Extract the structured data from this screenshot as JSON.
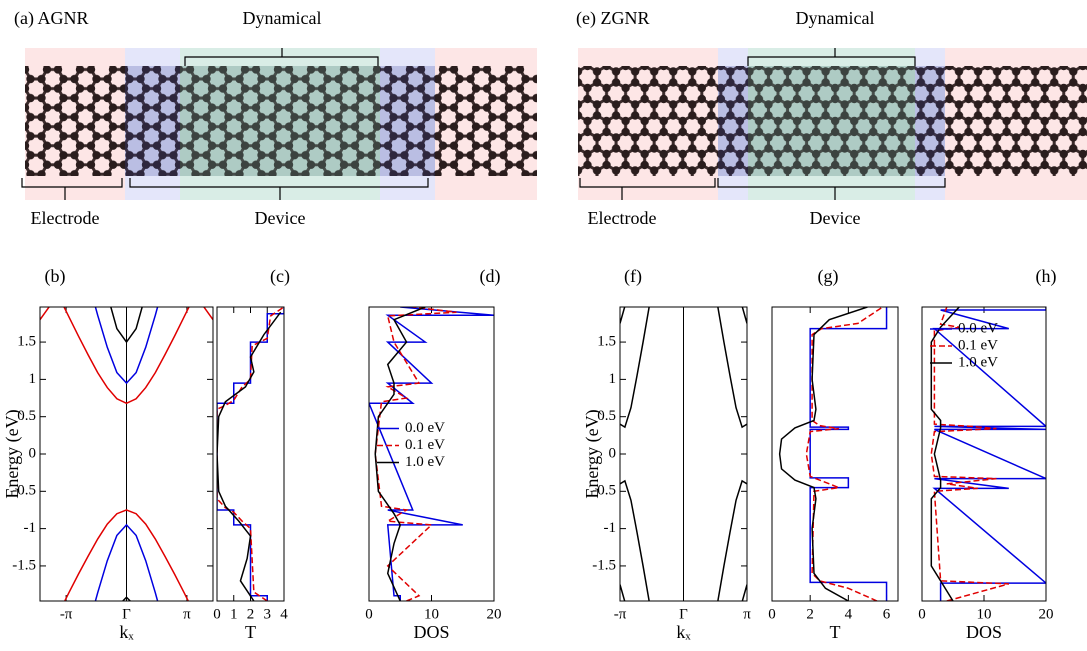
{
  "diagrams": [
    {
      "label": "(a) AGNR",
      "top_bracket": "Dynamical",
      "left_bracket": "Electrode",
      "bottom_bracket": "Device"
    },
    {
      "label": "(e) ZGNR",
      "top_bracket": "Dynamical",
      "left_bracket": "Electrode",
      "bottom_bracket": "Device"
    }
  ],
  "chart_data": [
    {
      "type": "line",
      "title": "(b)",
      "x_label": "kₓ",
      "y_label": "Energy (eV)",
      "xlim": [
        -4.5,
        4.5
      ],
      "ylim": [
        -1.97,
        1.97
      ],
      "xticks": [
        {
          "value": -3.1416,
          "label": "-π"
        },
        {
          "value": 0,
          "label": "Γ"
        },
        {
          "value": 3.1416,
          "label": "π"
        }
      ],
      "yticks": [
        -1.5,
        -1,
        -0.5,
        0,
        0.5,
        1,
        1.5
      ],
      "x": [
        -4.5,
        -4,
        -3.5,
        -3,
        -2.5,
        -2,
        -1.5,
        -1,
        -0.5,
        0,
        0.5,
        1,
        1.5,
        2,
        2.5,
        3,
        3.5,
        4,
        4.5
      ],
      "series": [
        {
          "color": "#e00000",
          "values": [
            null,
            null,
            2.1,
            1.84,
            1.58,
            1.33,
            1.09,
            0.89,
            0.74,
            0.68,
            0.74,
            0.89,
            1.09,
            1.33,
            1.58,
            1.84,
            2.1,
            null,
            null
          ]
        },
        {
          "color": "#e00000",
          "values": [
            1.8,
            1.98,
            null,
            null,
            null,
            null,
            null,
            null,
            null,
            null,
            null,
            null,
            null,
            null,
            null,
            null,
            null,
            1.98,
            1.8
          ]
        },
        {
          "color": "#e00000",
          "values": [
            null,
            null,
            -2.12,
            -1.86,
            -1.61,
            -1.37,
            -1.14,
            -0.94,
            -0.8,
            -0.75,
            -0.8,
            -0.94,
            -1.14,
            -1.37,
            -1.61,
            -1.86,
            -2.12,
            null,
            null
          ]
        },
        {
          "color": "#0000e0",
          "values": [
            null,
            null,
            null,
            null,
            null,
            2.33,
            1.86,
            1.43,
            1.09,
            0.95,
            1.09,
            1.43,
            1.86,
            2.33,
            null,
            null,
            null,
            null,
            null
          ]
        },
        {
          "color": "#0000e0",
          "values": [
            null,
            null,
            null,
            null,
            null,
            -2.33,
            -1.86,
            -1.43,
            -1.09,
            -0.95,
            -1.09,
            -1.43,
            -1.86,
            -2.33,
            null,
            null,
            null,
            null,
            null
          ]
        },
        {
          "color": "#000000",
          "values": [
            null,
            null,
            null,
            null,
            null,
            null,
            null,
            2.14,
            1.68,
            1.5,
            1.68,
            2.14,
            null,
            null,
            null,
            null,
            null,
            null,
            null
          ]
        },
        {
          "color": "#000000",
          "values": [
            null,
            null,
            null,
            null,
            null,
            null,
            null,
            null,
            -2.05,
            -1.92,
            -2.05,
            null,
            null,
            null,
            null,
            null,
            null,
            null,
            null
          ]
        }
      ]
    },
    {
      "type": "line",
      "orientation": "horizontal",
      "title": "(c)",
      "x_label": "T",
      "xlim": [
        0,
        4
      ],
      "ylim": [
        -1.97,
        1.97
      ],
      "xticks": [
        0,
        1,
        2,
        3,
        4
      ],
      "series": [
        {
          "color": "#0000e0",
          "style": "solid",
          "y": [
            -1.97,
            -1.9,
            -1.9,
            -0.95,
            -0.95,
            -0.75,
            -0.75,
            0.68,
            0.68,
            0.95,
            0.95,
            1.5,
            1.5,
            1.88,
            1.88,
            1.97
          ],
          "values": [
            3,
            3,
            2,
            2,
            1,
            1,
            0,
            0,
            1,
            1,
            2,
            2,
            3,
            3,
            4,
            4
          ]
        },
        {
          "color": "#e00000",
          "style": "dashed",
          "y": [
            -1.97,
            -1.85,
            -1.0,
            -0.9,
            -0.78,
            -0.72,
            -0.6,
            0.6,
            0.65,
            0.72,
            0.9,
            1.0,
            1.45,
            1.55,
            1.85,
            1.97
          ],
          "values": [
            3,
            2.2,
            2,
            1.5,
            1,
            0.5,
            0,
            0,
            0.5,
            1,
            1.5,
            2,
            2.1,
            3,
            3.2,
            4
          ]
        },
        {
          "color": "#000000",
          "style": "solid",
          "y": [
            -1.97,
            -1.7,
            -1.4,
            -1.1,
            -0.9,
            -0.7,
            -0.5,
            0,
            0.5,
            0.7,
            0.9,
            1.1,
            1.3,
            1.6,
            1.9
          ],
          "values": [
            2.2,
            1.4,
            1.8,
            2.0,
            1.3,
            0.5,
            0.1,
            0,
            0.1,
            0.5,
            1.7,
            2.2,
            2.0,
            2.8,
            3.8
          ]
        }
      ]
    },
    {
      "type": "line",
      "orientation": "horizontal",
      "title": "(d)",
      "x_label": "DOS",
      "xlim": [
        0,
        20
      ],
      "ylim": [
        -1.97,
        1.97
      ],
      "xticks": [
        0,
        10,
        20
      ],
      "legend": "center left",
      "series": [
        {
          "name": "0.0 eV",
          "color": "#0000e0",
          "style": "solid",
          "y": [
            -1.97,
            -1.9,
            -1.9,
            -0.95,
            -0.95,
            -0.75,
            -0.75,
            0.68,
            0.68,
            0.95,
            0.95,
            1.5,
            1.5,
            1.86,
            1.86,
            1.97
          ],
          "values": [
            5,
            5,
            4,
            3,
            15,
            3,
            7,
            0,
            7,
            3,
            10,
            3,
            9,
            3,
            20,
            5
          ]
        },
        {
          "name": "0.1 eV",
          "color": "#e00000",
          "style": "dashed",
          "y": [
            -1.97,
            -1.9,
            -1.5,
            -0.95,
            -0.9,
            -0.75,
            -0.7,
            0,
            0.7,
            0.75,
            0.9,
            0.95,
            1.5,
            1.85,
            1.9,
            1.97
          ],
          "values": [
            6,
            8,
            3,
            10,
            3,
            6,
            2,
            1,
            2,
            6,
            3,
            8,
            4,
            3,
            14,
            7
          ]
        },
        {
          "name": "1.0 eV",
          "color": "#000000",
          "style": "solid",
          "y": [
            -1.97,
            -1.6,
            -1.2,
            -0.95,
            -0.8,
            -0.5,
            0,
            0.5,
            0.8,
            0.95,
            1.2,
            1.5,
            1.8,
            1.97
          ],
          "values": [
            5,
            3,
            4,
            5,
            4,
            1.5,
            1,
            1.5,
            4,
            4,
            3,
            6,
            4,
            9
          ]
        }
      ]
    },
    {
      "type": "line",
      "title": "(f)",
      "x_label": "kₓ",
      "y_label": "Energy (eV)",
      "xlim": [
        -3.1416,
        3.1416
      ],
      "ylim": [
        -1.97,
        1.97
      ],
      "xticks": [
        {
          "value": -3.1416,
          "label": "-π"
        },
        {
          "value": 0,
          "label": "Γ"
        },
        {
          "value": 3.1416,
          "label": "π"
        }
      ],
      "yticks": [
        -1.5,
        -1,
        -0.5,
        0,
        0.5,
        1,
        1.5
      ],
      "x": [
        -3.1416,
        -2.9,
        -2.6,
        -2.3,
        -2,
        -1.7,
        0,
        1.7,
        2,
        2.3,
        2.6,
        2.9,
        3.1416
      ],
      "series": [
        {
          "color": "#000000",
          "values": [
            0.4,
            0.36,
            0.62,
            1.05,
            1.5,
            1.97,
            null,
            1.97,
            1.5,
            1.05,
            0.62,
            0.36,
            0.4
          ]
        },
        {
          "color": "#000000",
          "values": [
            1.75,
            1.98,
            null,
            null,
            null,
            null,
            null,
            null,
            null,
            null,
            null,
            1.98,
            1.75
          ]
        },
        {
          "color": "#000000",
          "values": [
            -0.4,
            -0.36,
            -0.62,
            -1.05,
            -1.5,
            -1.97,
            null,
            -1.97,
            -1.5,
            -1.05,
            -0.62,
            -0.36,
            -0.4
          ]
        },
        {
          "color": "#000000",
          "values": [
            -1.75,
            -1.98,
            null,
            null,
            null,
            null,
            null,
            null,
            null,
            null,
            null,
            -1.98,
            -1.75
          ]
        }
      ]
    },
    {
      "type": "line",
      "orientation": "horizontal",
      "title": "(g)",
      "x_label": "T",
      "xlim": [
        0,
        6.6
      ],
      "ylim": [
        -1.97,
        1.97
      ],
      "xticks": [
        0,
        2,
        4,
        6
      ],
      "series": [
        {
          "color": "#0000e0",
          "style": "solid",
          "y": [
            -1.97,
            -1.72,
            -1.72,
            -0.45,
            -0.45,
            -0.32,
            -0.32,
            0.33,
            0.33,
            0.36,
            0.36,
            1.68,
            1.68,
            1.97
          ],
          "values": [
            6,
            6,
            2,
            2,
            4,
            4,
            2,
            2,
            4,
            4,
            2,
            2,
            6,
            6
          ]
        },
        {
          "color": "#e00000",
          "style": "dashed",
          "y": [
            -1.97,
            -1.8,
            -1.7,
            -1.6,
            -0.5,
            -0.45,
            -0.4,
            -0.3,
            0,
            0.3,
            0.34,
            0.38,
            0.45,
            1.6,
            1.68,
            1.75,
            1.97
          ],
          "values": [
            5.5,
            4,
            2.5,
            2.1,
            2.2,
            3.5,
            3,
            2,
            1.8,
            2,
            3.5,
            2.5,
            2.1,
            2.1,
            2.6,
            4.5,
            5.8
          ]
        },
        {
          "color": "#000000",
          "style": "solid",
          "y": [
            -1.97,
            -1.8,
            -1.6,
            -1.0,
            -0.6,
            -0.45,
            -0.35,
            -0.2,
            0,
            0.2,
            0.35,
            0.45,
            0.6,
            1.0,
            1.6,
            1.8,
            1.97
          ],
          "values": [
            4,
            2.8,
            2.2,
            2.1,
            2.3,
            2.2,
            1.2,
            0.5,
            0.4,
            0.5,
            1.2,
            2.2,
            2.3,
            2.1,
            2.2,
            3,
            5
          ]
        }
      ]
    },
    {
      "type": "line",
      "orientation": "horizontal",
      "title": "(h)",
      "x_label": "DOS",
      "xlim": [
        0,
        20
      ],
      "ylim": [
        -1.97,
        1.97
      ],
      "xticks": [
        0,
        10,
        20
      ],
      "legend": "upper left",
      "series": [
        {
          "name": "0.0 eV",
          "color": "#0000e0",
          "style": "solid",
          "y": [
            -1.97,
            -1.73,
            -1.73,
            -0.46,
            -0.46,
            -0.33,
            -0.33,
            0.33,
            0.33,
            0.37,
            0.37,
            1.68,
            1.68,
            1.93,
            1.93,
            1.97
          ],
          "values": [
            3,
            3,
            20,
            2,
            14,
            2,
            20,
            2,
            20,
            2,
            20,
            2,
            14,
            3,
            20,
            20
          ]
        },
        {
          "name": "0.1 eV",
          "color": "#e00000",
          "style": "dashed",
          "y": [
            -1.97,
            -1.74,
            -1.7,
            -0.5,
            -0.46,
            -0.4,
            -0.33,
            -0.3,
            0,
            0.3,
            0.34,
            0.37,
            0.4,
            1.65,
            1.7,
            1.74,
            1.97
          ],
          "values": [
            4,
            14,
            3,
            2,
            9,
            4,
            12,
            2,
            1.5,
            2,
            12,
            8,
            2,
            2,
            6,
            3,
            4
          ]
        },
        {
          "name": "1.0 eV",
          "color": "#000000",
          "style": "solid",
          "y": [
            -1.97,
            -1.7,
            -1.5,
            -0.6,
            -0.45,
            -0.35,
            0,
            0.35,
            0.45,
            0.6,
            1.5,
            1.7,
            1.97
          ],
          "values": [
            5,
            3,
            1.5,
            1.5,
            3,
            3,
            2,
            3,
            3,
            1.5,
            1.5,
            3,
            6
          ]
        }
      ]
    }
  ]
}
